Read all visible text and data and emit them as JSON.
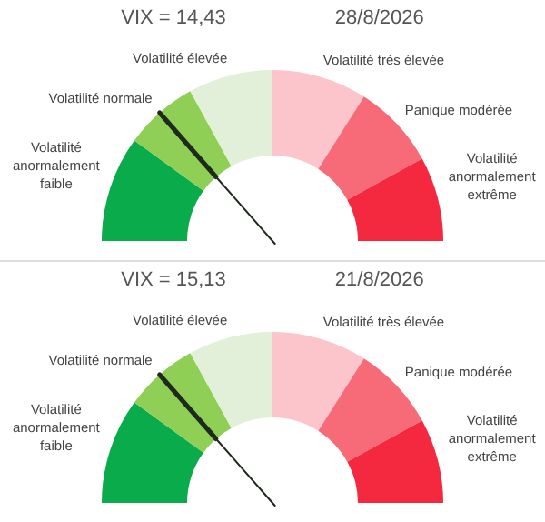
{
  "chart_data": [
    {
      "type": "donut",
      "title": "VIX = 14,43",
      "subtitle": "28/8/2026",
      "categories": [
        "Volatilité anormalement faible",
        "Volatilité normale",
        "Volatilité élevée",
        "Volatilité très élevée",
        "Panique modérée",
        "Volatilité anormalement extrême"
      ],
      "values": [
        20,
        14,
        16,
        18,
        16,
        16
      ],
      "colors": [
        "#0aab4a",
        "#8fcf55",
        "#e2efd9",
        "#fcc4cb",
        "#f66b77",
        "#f4283f"
      ],
      "needle": "Volatilité normale"
    },
    {
      "type": "donut",
      "title": "VIX = 15,13",
      "subtitle": "21/8/2026",
      "categories": [
        "Volatilité anormalement faible",
        "Volatilité normale",
        "Volatilité élevée",
        "Volatilité très élevée",
        "Panique modérée",
        "Volatilité anormalement extrême"
      ],
      "values": [
        20,
        14,
        16,
        18,
        16,
        16
      ],
      "colors": [
        "#0aab4a",
        "#8fcf55",
        "#e2efd9",
        "#fcc4cb",
        "#f66b77",
        "#f4283f"
      ],
      "needle": "Volatilité normale"
    }
  ]
}
